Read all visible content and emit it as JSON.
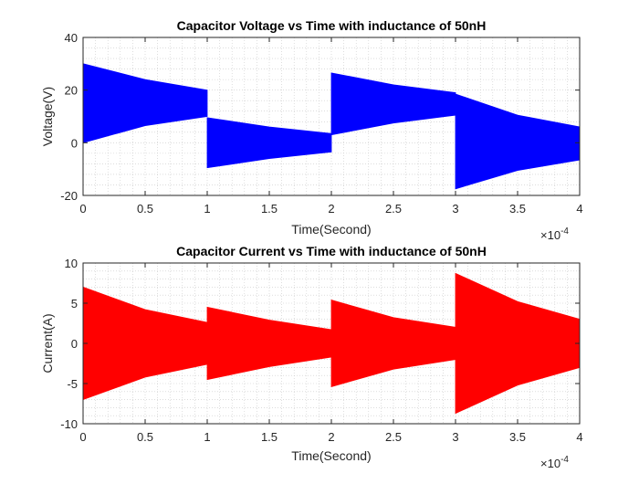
{
  "chart_data": [
    {
      "type": "line",
      "title": "Capacitor Voltage vs Time with inductance of 50nH",
      "xlabel": "Time(Second)",
      "ylabel": "Voltage(V)",
      "xlim": [
        0,
        4
      ],
      "ylim": [
        -20,
        40
      ],
      "x_ticks": [
        "0",
        "0.5",
        "1",
        "1.5",
        "2",
        "2.5",
        "3",
        "3.5",
        "4"
      ],
      "y_ticks": [
        "-20",
        "0",
        "20",
        "40"
      ],
      "x_exponent": {
        "base": "×10",
        "power": "-4"
      },
      "grid": "minor-dotted",
      "color": "#0000ff",
      "series": [
        {
          "envelope": [
            {
              "x": 0.0,
              "upper": 30,
              "lower": 0
            },
            {
              "x": 0.5,
              "upper": 24,
              "lower": 6.5
            },
            {
              "x": 1.0,
              "upper": 20,
              "lower": 10
            },
            {
              "x": 1.0,
              "upper": 9.5,
              "lower": -9.5
            },
            {
              "x": 1.5,
              "upper": 6,
              "lower": -6
            },
            {
              "x": 2.0,
              "upper": 3.5,
              "lower": -3.5
            },
            {
              "x": 2.0,
              "upper": 26.5,
              "lower": 3
            },
            {
              "x": 2.5,
              "upper": 22,
              "lower": 7.5
            },
            {
              "x": 3.0,
              "upper": 19,
              "lower": 10.5
            },
            {
              "x": 3.0,
              "upper": 18.5,
              "lower": -17.5
            },
            {
              "x": 3.5,
              "upper": 10.5,
              "lower": -10.5
            },
            {
              "x": 4.0,
              "upper": 6,
              "lower": -6.5
            }
          ]
        }
      ]
    },
    {
      "type": "line",
      "title": "Capacitor Current vs Time with inductance of 50nH",
      "xlabel": "Time(Second)",
      "ylabel": "Current(A)",
      "xlim": [
        0,
        4
      ],
      "ylim": [
        -10,
        10
      ],
      "x_ticks": [
        "0",
        "0.5",
        "1",
        "1.5",
        "2",
        "2.5",
        "3",
        "3.5",
        "4"
      ],
      "y_ticks": [
        "-10",
        "-5",
        "0",
        "5",
        "10"
      ],
      "x_exponent": {
        "base": "×10",
        "power": "-4"
      },
      "grid": "minor-dotted",
      "color": "#ff0000",
      "series": [
        {
          "envelope": [
            {
              "x": 0.0,
              "upper": 7,
              "lower": -7
            },
            {
              "x": 0.5,
              "upper": 4.2,
              "lower": -4.2
            },
            {
              "x": 1.0,
              "upper": 2.6,
              "lower": -2.6
            },
            {
              "x": 1.0,
              "upper": 4.5,
              "lower": -4.5
            },
            {
              "x": 1.5,
              "upper": 2.9,
              "lower": -2.9
            },
            {
              "x": 2.0,
              "upper": 1.7,
              "lower": -1.7
            },
            {
              "x": 2.0,
              "upper": 5.4,
              "lower": -5.4
            },
            {
              "x": 2.5,
              "upper": 3.2,
              "lower": -3.2
            },
            {
              "x": 3.0,
              "upper": 2,
              "lower": -2
            },
            {
              "x": 3.0,
              "upper": 8.7,
              "lower": -8.7
            },
            {
              "x": 3.5,
              "upper": 5.2,
              "lower": -5.2
            },
            {
              "x": 4.0,
              "upper": 3,
              "lower": -3
            }
          ]
        }
      ]
    }
  ]
}
